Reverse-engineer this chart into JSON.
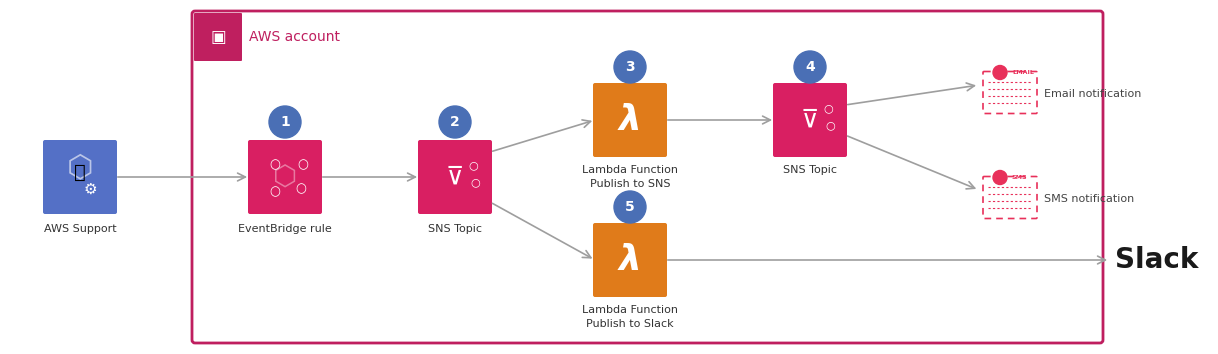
{
  "bg_color": "#ffffff",
  "border_color": "#bf1f5f",
  "aws_account_label": "AWS account",
  "aws_account_label_color": "#bf1f5f",
  "arrow_color": "#9e9e9e",
  "step_circle_color": "#4a6fb5",
  "step_circle_text_color": "#ffffff",
  "lambda_color": "#e07b1a",
  "eventbridge_color": "#d91f62",
  "sns_icon_color": "#d91f62",
  "support_color": "#5470c6",
  "pink_icon_color": "#e8305a",
  "slack_text_color": "#1a1a1a",
  "notification_text_color": "#444444",
  "labels": {
    "aws_support": "AWS Support",
    "eventbridge": "EventBridge rule",
    "sns_topic_2": "SNS Topic",
    "lambda_sns": "Lambda Function\nPublish to SNS",
    "sns_topic_4": "SNS Topic",
    "lambda_slack": "Lambda Function\nPublish to Slack",
    "email": "Email notification",
    "sms": "SMS notification",
    "slack": "Slack"
  },
  "figw": 12.18,
  "figh": 3.54,
  "dpi": 100
}
